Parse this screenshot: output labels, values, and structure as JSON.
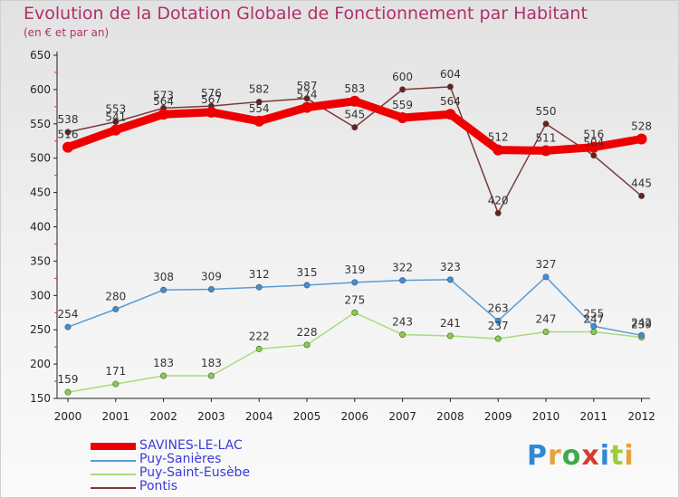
{
  "header": {
    "title": "Evolution de la Dotation Globale de Fonctionnement par Habitant",
    "subtitle": "(en € et par an)"
  },
  "brand": {
    "letters": [
      "P",
      "r",
      "o",
      "x",
      "i",
      "t",
      "i"
    ]
  },
  "chart_data": {
    "type": "line",
    "title": "Evolution de la Dotation Globale de Fonctionnement par Habitant",
    "subtitle": "(en € et par an)",
    "xlabel": "",
    "ylabel": "",
    "ylim": [
      150,
      650
    ],
    "y_ticks": [
      150,
      200,
      250,
      300,
      350,
      400,
      450,
      500,
      550,
      600,
      650
    ],
    "grid": false,
    "legend_position": "bottom-left",
    "x": [
      "2000",
      "2001",
      "2002",
      "2003",
      "2004",
      "2005",
      "2006",
      "2007",
      "2008",
      "2009",
      "2010",
      "2011",
      "2012"
    ],
    "series": [
      {
        "name": "SAVINES-LE-LAC",
        "color": "#ee0000",
        "marker_color": "#ee0000",
        "values": [
          516,
          541,
          564,
          567,
          554,
          574,
          583,
          559,
          564,
          512,
          511,
          516,
          528
        ],
        "labels": [
          "516",
          "541",
          "564",
          "567",
          "554",
          "574",
          "583",
          "559",
          "564",
          "512",
          "511",
          "516",
          "528"
        ]
      },
      {
        "name": "Puy-Sanières",
        "color": "#5a9bd4",
        "marker_color": "#3a8fe0",
        "values": [
          254,
          280,
          308,
          309,
          312,
          315,
          319,
          322,
          323,
          263,
          327,
          255,
          242
        ],
        "labels": [
          "254",
          "280",
          "308",
          "309",
          "312",
          "315",
          "319",
          "322",
          "323",
          "263",
          "327",
          "255",
          "242"
        ]
      },
      {
        "name": "Puy-Saint-Eusèbe",
        "color": "#a8dc78",
        "marker_color": "#86d040",
        "values": [
          159,
          171,
          183,
          183,
          222,
          228,
          275,
          243,
          241,
          237,
          247,
          247,
          239
        ],
        "labels": [
          "159",
          "171",
          "183",
          "183",
          "222",
          "228",
          "275",
          "243",
          "241",
          "237",
          "247",
          "247",
          "239"
        ]
      },
      {
        "name": "Pontis",
        "color": "#7a3a3a",
        "marker_color": "#6a1f1f",
        "values": [
          538,
          553,
          573,
          576,
          582,
          587,
          545,
          600,
          604,
          420,
          550,
          504,
          445
        ],
        "labels": [
          "538",
          "553",
          "573",
          "576",
          "582",
          "587",
          "545",
          "600",
          "604",
          "420",
          "550",
          "504",
          "445"
        ]
      }
    ]
  }
}
